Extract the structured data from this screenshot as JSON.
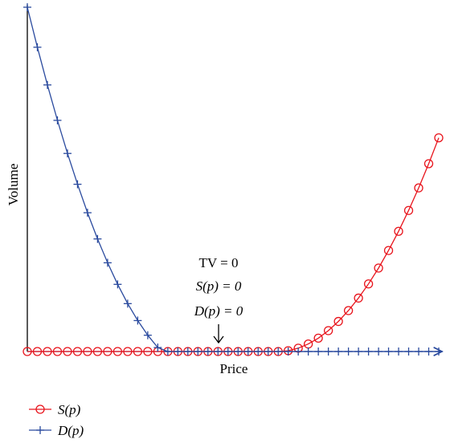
{
  "chart_data": {
    "type": "line",
    "xlabel": "Price",
    "ylabel": "Volume",
    "xlim": [
      0,
      1
    ],
    "ylim": [
      0,
      1
    ],
    "series": [
      {
        "name": "S(p)",
        "color": "#e8141c",
        "marker": "circle",
        "x": [
          0.0,
          0.0244,
          0.0488,
          0.0732,
          0.0976,
          0.122,
          0.1463,
          0.1707,
          0.1951,
          0.2195,
          0.2439,
          0.2683,
          0.2927,
          0.3171,
          0.3415,
          0.3659,
          0.3902,
          0.4146,
          0.439,
          0.4634,
          0.4878,
          0.5122,
          0.5366,
          0.561,
          0.5854,
          0.6098,
          0.6341,
          0.6585,
          0.6829,
          0.7073,
          0.7317,
          0.7561,
          0.7805,
          0.8049,
          0.8293,
          0.8537,
          0.878,
          0.9024,
          0.9268,
          0.9512,
          0.9756,
          1.0
        ],
        "y": [
          0,
          0,
          0,
          0,
          0,
          0,
          0,
          0,
          0,
          0,
          0,
          0,
          0,
          0,
          0,
          0,
          0,
          0,
          0,
          0,
          0,
          0,
          0,
          0,
          0,
          0.0,
          0.0024,
          0.0097,
          0.0218,
          0.0388,
          0.0606,
          0.0873,
          0.1188,
          0.1552,
          0.1964,
          0.2424,
          0.2934,
          0.3491,
          0.4097,
          0.4752,
          0.5455,
          0.6207
        ]
      },
      {
        "name": "D(p)",
        "color": "#2a4a9e",
        "marker": "plus",
        "x": [
          0.0,
          0.0244,
          0.0488,
          0.0732,
          0.0976,
          0.122,
          0.1463,
          0.1707,
          0.1951,
          0.2195,
          0.2439,
          0.2683,
          0.2927,
          0.3171,
          0.3415,
          0.3659,
          0.3902,
          0.4146,
          0.439,
          0.4634,
          0.4878,
          0.5122,
          0.5366,
          0.561,
          0.5854,
          0.6098,
          0.6341,
          0.6585,
          0.6829,
          0.7073,
          0.7317,
          0.7561,
          0.7805,
          0.8049,
          0.8293,
          0.8537,
          0.878,
          0.9024,
          0.9268,
          0.9512,
          0.9756,
          1.0
        ],
        "y": [
          1.0,
          0.8838,
          0.7743,
          0.6714,
          0.5753,
          0.4858,
          0.4031,
          0.327,
          0.2577,
          0.1951,
          0.1391,
          0.0899,
          0.0473,
          0.0115,
          0.0,
          0,
          0,
          0,
          0,
          0,
          0,
          0,
          0,
          0,
          0,
          0,
          0,
          0,
          0,
          0,
          0,
          0,
          0,
          0,
          0,
          0,
          0,
          0,
          0,
          0,
          0,
          0
        ]
      }
    ],
    "annotation": {
      "lines": [
        "TV = 0",
        "S(p) = 0",
        "D(p) = 0"
      ],
      "arrow_x": 0.5366,
      "arrow": "down"
    },
    "legend": {
      "position": "bottom-left",
      "entries": [
        "S(p)",
        "D(p)"
      ]
    },
    "grid": false
  }
}
